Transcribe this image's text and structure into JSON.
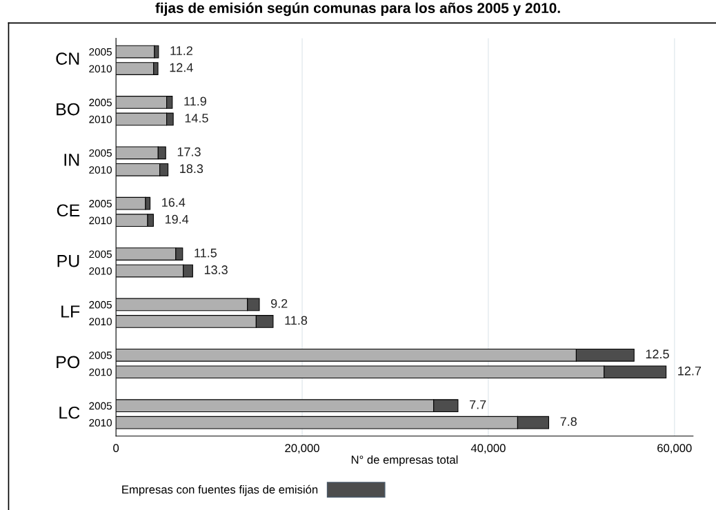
{
  "chart_data": {
    "type": "bar",
    "orientation": "horizontal",
    "stacked": true,
    "title": "fijas de emisión según comunas para los años 2005 y 2010.",
    "xlabel": "N° de empresas total",
    "categories": [
      "2005",
      "2010",
      null,
      "2005",
      "2010",
      null,
      "2005",
      "2010",
      null,
      "2005",
      "2010",
      null,
      "2005",
      "2010",
      null,
      "2005",
      "2010",
      null,
      "2005",
      "2010",
      null,
      "2005",
      "2010"
    ],
    "annotations": [
      "CN",
      "BO",
      "IN",
      "CE",
      "PU",
      "LF",
      "PO",
      "LC",
      "11.2",
      "12.4",
      "11.9",
      "14.5",
      "17.3",
      "18.3",
      "16.4",
      "19.4",
      "11.5",
      "13.3",
      "9.2",
      "11.8",
      "12.5",
      "12.7",
      "7.7",
      "7.8"
    ],
    "series": [
      {
        "color": "#b0b0b0",
        "values": [
          4130,
          4040,
          null,
          5440,
          5440,
          null,
          4530,
          4700,
          null,
          3170,
          3400,
          null,
          6420,
          7230,
          null,
          14120,
          15060,
          null,
          49450,
          52440,
          null,
          34130,
          43150
        ]
      },
      {
        "name": "Empresas con fuentes fijas de emisión",
        "color": "#4d4d4d",
        "values": [
          440,
          470,
          null,
          610,
          710,
          null,
          810,
          890,
          null,
          490,
          620,
          null,
          740,
          1010,
          null,
          1280,
          1820,
          null,
          6210,
          6660,
          null,
          2610,
          3340
        ]
      }
    ],
    "xlim": [
      0,
      62000
    ],
    "xticks": [
      0,
      {
        "value": 20000,
        "label": "20,000"
      },
      {
        "value": 40000,
        "label": "40,000"
      },
      {
        "value": 60000,
        "label": "60,000"
      }
    ],
    "grid": "x",
    "legend": "bottom left"
  }
}
